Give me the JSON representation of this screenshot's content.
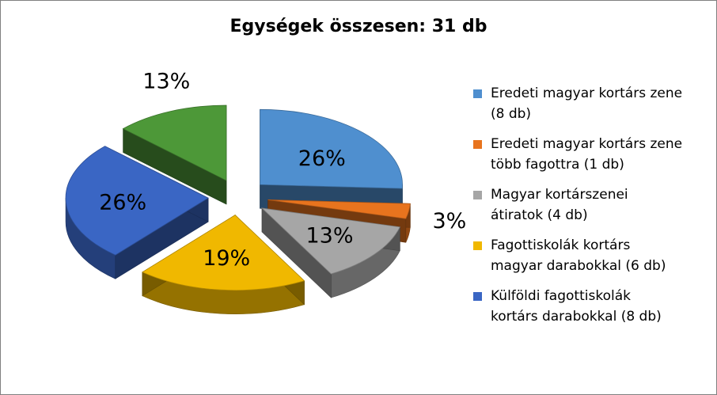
{
  "chart_data": {
    "type": "pie",
    "title": "Egységek összesen: 31 db",
    "categories": [
      "Eredeti magyar kortárs zene (8 db)",
      "Eredeti magyar kortárs zene több fagottra (1 db)",
      "Magyar kortárszenei átiratok (4 db)",
      "Fagottiskolák kortárs magyar darabokkal (6 db)",
      "Külföldi fagottiskolák kortárs darabokkal (8 db)",
      ""
    ],
    "values": [
      8,
      1,
      4,
      6,
      8,
      4
    ],
    "data_labels": [
      "26%",
      "3%",
      "13%",
      "19%",
      "26%",
      "13%"
    ],
    "colors": [
      "#4f8fcf",
      "#e8741e",
      "#a6a6a6",
      "#f0b800",
      "#3a66c4",
      "#4d9838"
    ],
    "legend_position": "right",
    "exploded": true,
    "three_d": true
  },
  "legend": {
    "items": [
      {
        "line1": "Eredeti magyar kortárs zene",
        "line2": "(8 db)",
        "color": "#4f8fcf"
      },
      {
        "line1": "Eredeti magyar kortárs zene",
        "line2": "több fagottra (1 db)",
        "color": "#e8741e"
      },
      {
        "line1": "Magyar kortárszenei",
        "line2": "átiratok (4 db)",
        "color": "#a6a6a6"
      },
      {
        "line1": "Fagottiskolák kortárs",
        "line2": "magyar darabokkal (6 db)",
        "color": "#f0b800"
      },
      {
        "line1": "Külföldi fagottiskolák",
        "line2": "kortárs darabokkal (8 db)",
        "color": "#3a66c4"
      }
    ]
  }
}
